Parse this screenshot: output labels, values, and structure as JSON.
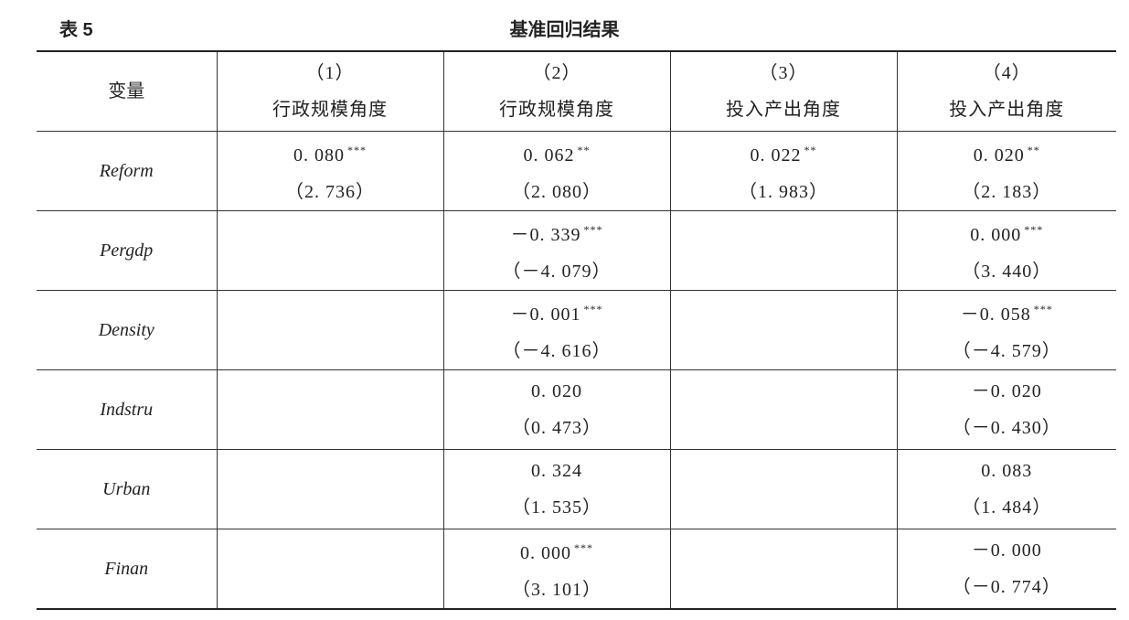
{
  "table_label": "表 5",
  "table_title": "基准回归结果",
  "header": {
    "var_label": "变量",
    "columns": [
      {
        "num": "（1）",
        "name": "行政规模角度"
      },
      {
        "num": "（2）",
        "name": "行政规模角度"
      },
      {
        "num": "（3）",
        "name": "投入产出角度"
      },
      {
        "num": "（4）",
        "name": "投入产出角度"
      }
    ]
  },
  "rows": [
    {
      "var": "Reform",
      "cells": [
        {
          "coef": "0. 080",
          "stars": "***",
          "t": "（2. 736）"
        },
        {
          "coef": "0. 062",
          "stars": "**",
          "t": "（2. 080）"
        },
        {
          "coef": "0. 022",
          "stars": "**",
          "t": "（1. 983）"
        },
        {
          "coef": "0. 020",
          "stars": "**",
          "t": "（2. 183）"
        }
      ]
    },
    {
      "var": "Pergdp",
      "cells": [
        {
          "coef": "",
          "stars": "",
          "t": ""
        },
        {
          "coef": "－0. 339",
          "stars": "***",
          "t": "（－4. 079）"
        },
        {
          "coef": "",
          "stars": "",
          "t": ""
        },
        {
          "coef": "0. 000",
          "stars": "***",
          "t": "（3. 440）"
        }
      ]
    },
    {
      "var": "Density",
      "cells": [
        {
          "coef": "",
          "stars": "",
          "t": ""
        },
        {
          "coef": "－0. 001",
          "stars": "***",
          "t": "（－4. 616）"
        },
        {
          "coef": "",
          "stars": "",
          "t": ""
        },
        {
          "coef": "－0. 058",
          "stars": "***",
          "t": "（－4. 579）"
        }
      ]
    },
    {
      "var": "Indstru",
      "cells": [
        {
          "coef": "",
          "stars": "",
          "t": ""
        },
        {
          "coef": "0. 020",
          "stars": "",
          "t": "（0. 473）"
        },
        {
          "coef": "",
          "stars": "",
          "t": ""
        },
        {
          "coef": "－0. 020",
          "stars": "",
          "t": "（－0. 430）"
        }
      ]
    },
    {
      "var": "Urban",
      "cells": [
        {
          "coef": "",
          "stars": "",
          "t": ""
        },
        {
          "coef": "0. 324",
          "stars": "",
          "t": "（1. 535）"
        },
        {
          "coef": "",
          "stars": "",
          "t": ""
        },
        {
          "coef": "0. 083",
          "stars": "",
          "t": "（1. 484）"
        }
      ]
    },
    {
      "var": "Finan",
      "cells": [
        {
          "coef": "",
          "stars": "",
          "t": ""
        },
        {
          "coef": "0. 000",
          "stars": "***",
          "t": "（3. 101）"
        },
        {
          "coef": "",
          "stars": "",
          "t": ""
        },
        {
          "coef": "－0. 000",
          "stars": "",
          "t": "（－0. 774）"
        }
      ]
    }
  ]
}
